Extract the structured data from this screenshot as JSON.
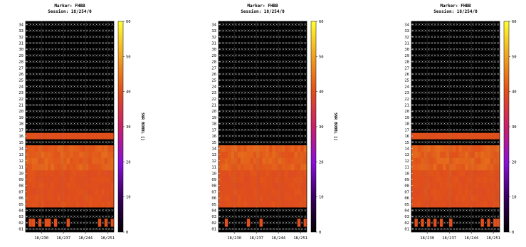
{
  "chart_data": [
    {
      "type": "heatmap",
      "title": "Marker: FHBB",
      "subtitle": "Session: 18/254/0",
      "ylabel": "",
      "colorbar_label": "SNR BOBBL []",
      "y_categories": [
        "01",
        "02",
        "03",
        "04",
        "05",
        "06",
        "07",
        "08",
        "09",
        "10",
        "11",
        "12",
        "13",
        "14",
        "15",
        "16",
        "17",
        "18",
        "19",
        "20",
        "21",
        "22",
        "23",
        "24",
        "25",
        "26",
        "27",
        "28",
        "29",
        "30",
        "31",
        "32",
        "33",
        "34"
      ],
      "x_tick_labels": [
        "18/230",
        "18/237",
        "18/244",
        "18/251"
      ],
      "x_range": [
        18225,
        18253
      ],
      "x_ticks": [
        18230,
        18237,
        18244,
        18251
      ],
      "color_range": [
        0,
        60
      ],
      "colorbar_ticks": [
        0,
        10,
        20,
        30,
        40,
        50,
        60
      ],
      "band_low": {
        "rows": [
          "05",
          "06",
          "07",
          "08",
          "09",
          "10"
        ],
        "value": 40
      },
      "band_high": {
        "rows": [
          "11",
          "12",
          "13",
          "14"
        ],
        "value": 42
      },
      "band_mid": {
        "rows": [
          "16"
        ],
        "value": 40
      },
      "row02_cells_x": [
        18226,
        18227,
        18229,
        18231,
        18232,
        18234,
        18238,
        18248,
        18250,
        18252
      ],
      "row02_value": 40,
      "missing_marker": "x"
    },
    {
      "type": "heatmap",
      "title": "Marker: FHBB",
      "subtitle": "Session: 18/254/0",
      "ylabel": "",
      "colorbar_label": "SNR BOBBL []",
      "y_categories": [
        "01",
        "02",
        "03",
        "04",
        "05",
        "06",
        "07",
        "08",
        "09",
        "10",
        "11",
        "12",
        "13",
        "14",
        "15",
        "16",
        "17",
        "18",
        "19",
        "20",
        "21",
        "22",
        "23",
        "24",
        "25",
        "26",
        "27",
        "28",
        "29",
        "30",
        "31",
        "32",
        "33",
        "34"
      ],
      "x_tick_labels": [
        "18/230",
        "18/237",
        "18/244",
        "18/251"
      ],
      "x_range": [
        18225,
        18253
      ],
      "x_ticks": [
        18230,
        18237,
        18244,
        18251
      ],
      "color_range": [
        0,
        60
      ],
      "colorbar_ticks": [
        0,
        10,
        20,
        30,
        40,
        50,
        60
      ],
      "band_low": {
        "rows": [
          "05",
          "06",
          "07",
          "08",
          "09",
          "10"
        ],
        "value": 40
      },
      "band_high": {
        "rows": [
          "11",
          "12",
          "13",
          "14"
        ],
        "value": 42
      },
      "band_mid": {
        "rows": [],
        "value": 40
      },
      "row02_cells_x": [
        18227,
        18234,
        18238,
        18250,
        18252
      ],
      "row02_value": 40,
      "missing_marker": "x"
    },
    {
      "type": "heatmap",
      "title": "Marker: FHBB",
      "subtitle": "Session: 18/254/0",
      "ylabel": "",
      "colorbar_label": "SNR BOBBL []",
      "y_categories": [
        "01",
        "02",
        "03",
        "04",
        "05",
        "06",
        "07",
        "08",
        "09",
        "10",
        "11",
        "12",
        "13",
        "14",
        "15",
        "16",
        "17",
        "18",
        "19",
        "20",
        "21",
        "22",
        "23",
        "24",
        "25",
        "26",
        "27",
        "28",
        "29",
        "30",
        "31",
        "32",
        "33",
        "34"
      ],
      "x_tick_labels": [
        "18/230",
        "18/237",
        "18/244",
        "18/251"
      ],
      "x_range": [
        18225,
        18253
      ],
      "x_ticks": [
        18230,
        18237,
        18244,
        18251
      ],
      "color_range": [
        0,
        60
      ],
      "colorbar_ticks": [
        0,
        10,
        20,
        30,
        40,
        50,
        60
      ],
      "band_low": {
        "rows": [
          "05",
          "06",
          "07",
          "08",
          "09",
          "10"
        ],
        "value": 40
      },
      "band_high": {
        "rows": [
          "11",
          "12",
          "13",
          "14"
        ],
        "value": 42
      },
      "band_mid": {
        "rows": [
          "16"
        ],
        "value": 40
      },
      "row02_cells_x": [
        18226,
        18228,
        18230,
        18232,
        18234,
        18237,
        18247,
        18249,
        18251,
        18252
      ],
      "row02_value": 40,
      "missing_marker": "x"
    }
  ]
}
